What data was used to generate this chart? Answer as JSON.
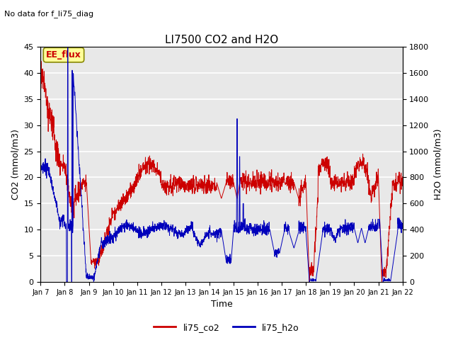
{
  "title": "LI7500 CO2 and H2O",
  "top_left_text": "No data for f_li75_diag",
  "annotation_text": "EE_flux",
  "xlabel": "Time",
  "ylabel_left": "CO2 (mmol/m3)",
  "ylabel_right": "H2O (mmol/m3)",
  "ylim_left": [
    0,
    45
  ],
  "ylim_right": [
    0,
    1800
  ],
  "xtick_labels": [
    "Jan 7",
    "Jan 8",
    "Jan 9",
    "Jan 10",
    "Jan 11",
    "Jan 12",
    "Jan 13",
    "Jan 14",
    "Jan 15",
    "Jan 16",
    "Jan 17",
    "Jan 18",
    "Jan 19",
    "Jan 20",
    "Jan 21",
    "Jan 22"
  ],
  "line_co2_color": "#cc0000",
  "line_h2o_color": "#0000bb",
  "legend_labels": [
    "li75_co2",
    "li75_h2o"
  ],
  "background_color": "#e8e8e8",
  "grid_color": "#ffffff",
  "annotation_box_facecolor": "#ffff99",
  "annotation_box_edgecolor": "#888800",
  "annotation_text_color": "#cc0000",
  "title_fontsize": 11,
  "label_fontsize": 9,
  "tick_fontsize": 8
}
